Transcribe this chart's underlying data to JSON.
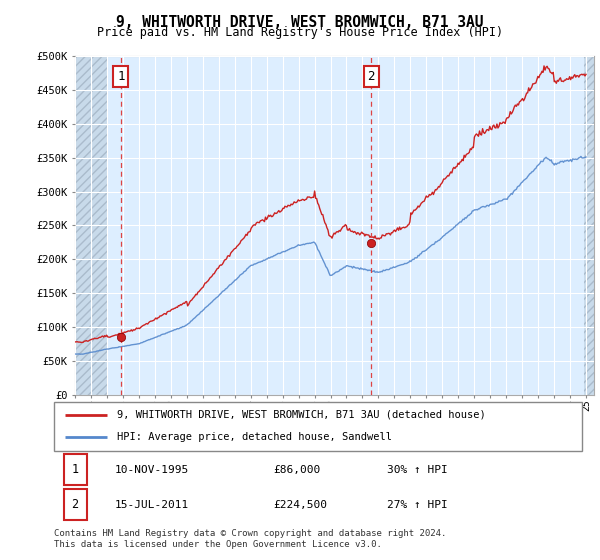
{
  "title": "9, WHITWORTH DRIVE, WEST BROMWICH, B71 3AU",
  "subtitle": "Price paid vs. HM Land Registry's House Price Index (HPI)",
  "title_fontsize": 10.5,
  "subtitle_fontsize": 8.5,
  "ylim": [
    0,
    500000
  ],
  "yticks": [
    0,
    50000,
    100000,
    150000,
    200000,
    250000,
    300000,
    350000,
    400000,
    450000,
    500000
  ],
  "ytick_labels": [
    "£0",
    "£50K",
    "£100K",
    "£150K",
    "£200K",
    "£250K",
    "£300K",
    "£350K",
    "£400K",
    "£450K",
    "£500K"
  ],
  "hpi_color": "#5588cc",
  "price_color": "#cc2222",
  "dashed_line_color": "#dd4444",
  "point1_date": "10-NOV-1995",
  "point1_price": 86000,
  "point1_hpi_pct": "30% ↑ HPI",
  "point2_date": "15-JUL-2011",
  "point2_price": 224500,
  "point2_hpi_pct": "27% ↑ HPI",
  "legend_line1": "9, WHITWORTH DRIVE, WEST BROMWICH, B71 3AU (detached house)",
  "legend_line2": "HPI: Average price, detached house, Sandwell",
  "footnote": "Contains HM Land Registry data © Crown copyright and database right 2024.\nThis data is licensed under the Open Government Licence v3.0.",
  "plot_bg_color": "#ddeeff",
  "fig_bg_color": "#ffffff",
  "grid_color": "#ffffff",
  "hatch_color": "#bbccdd"
}
